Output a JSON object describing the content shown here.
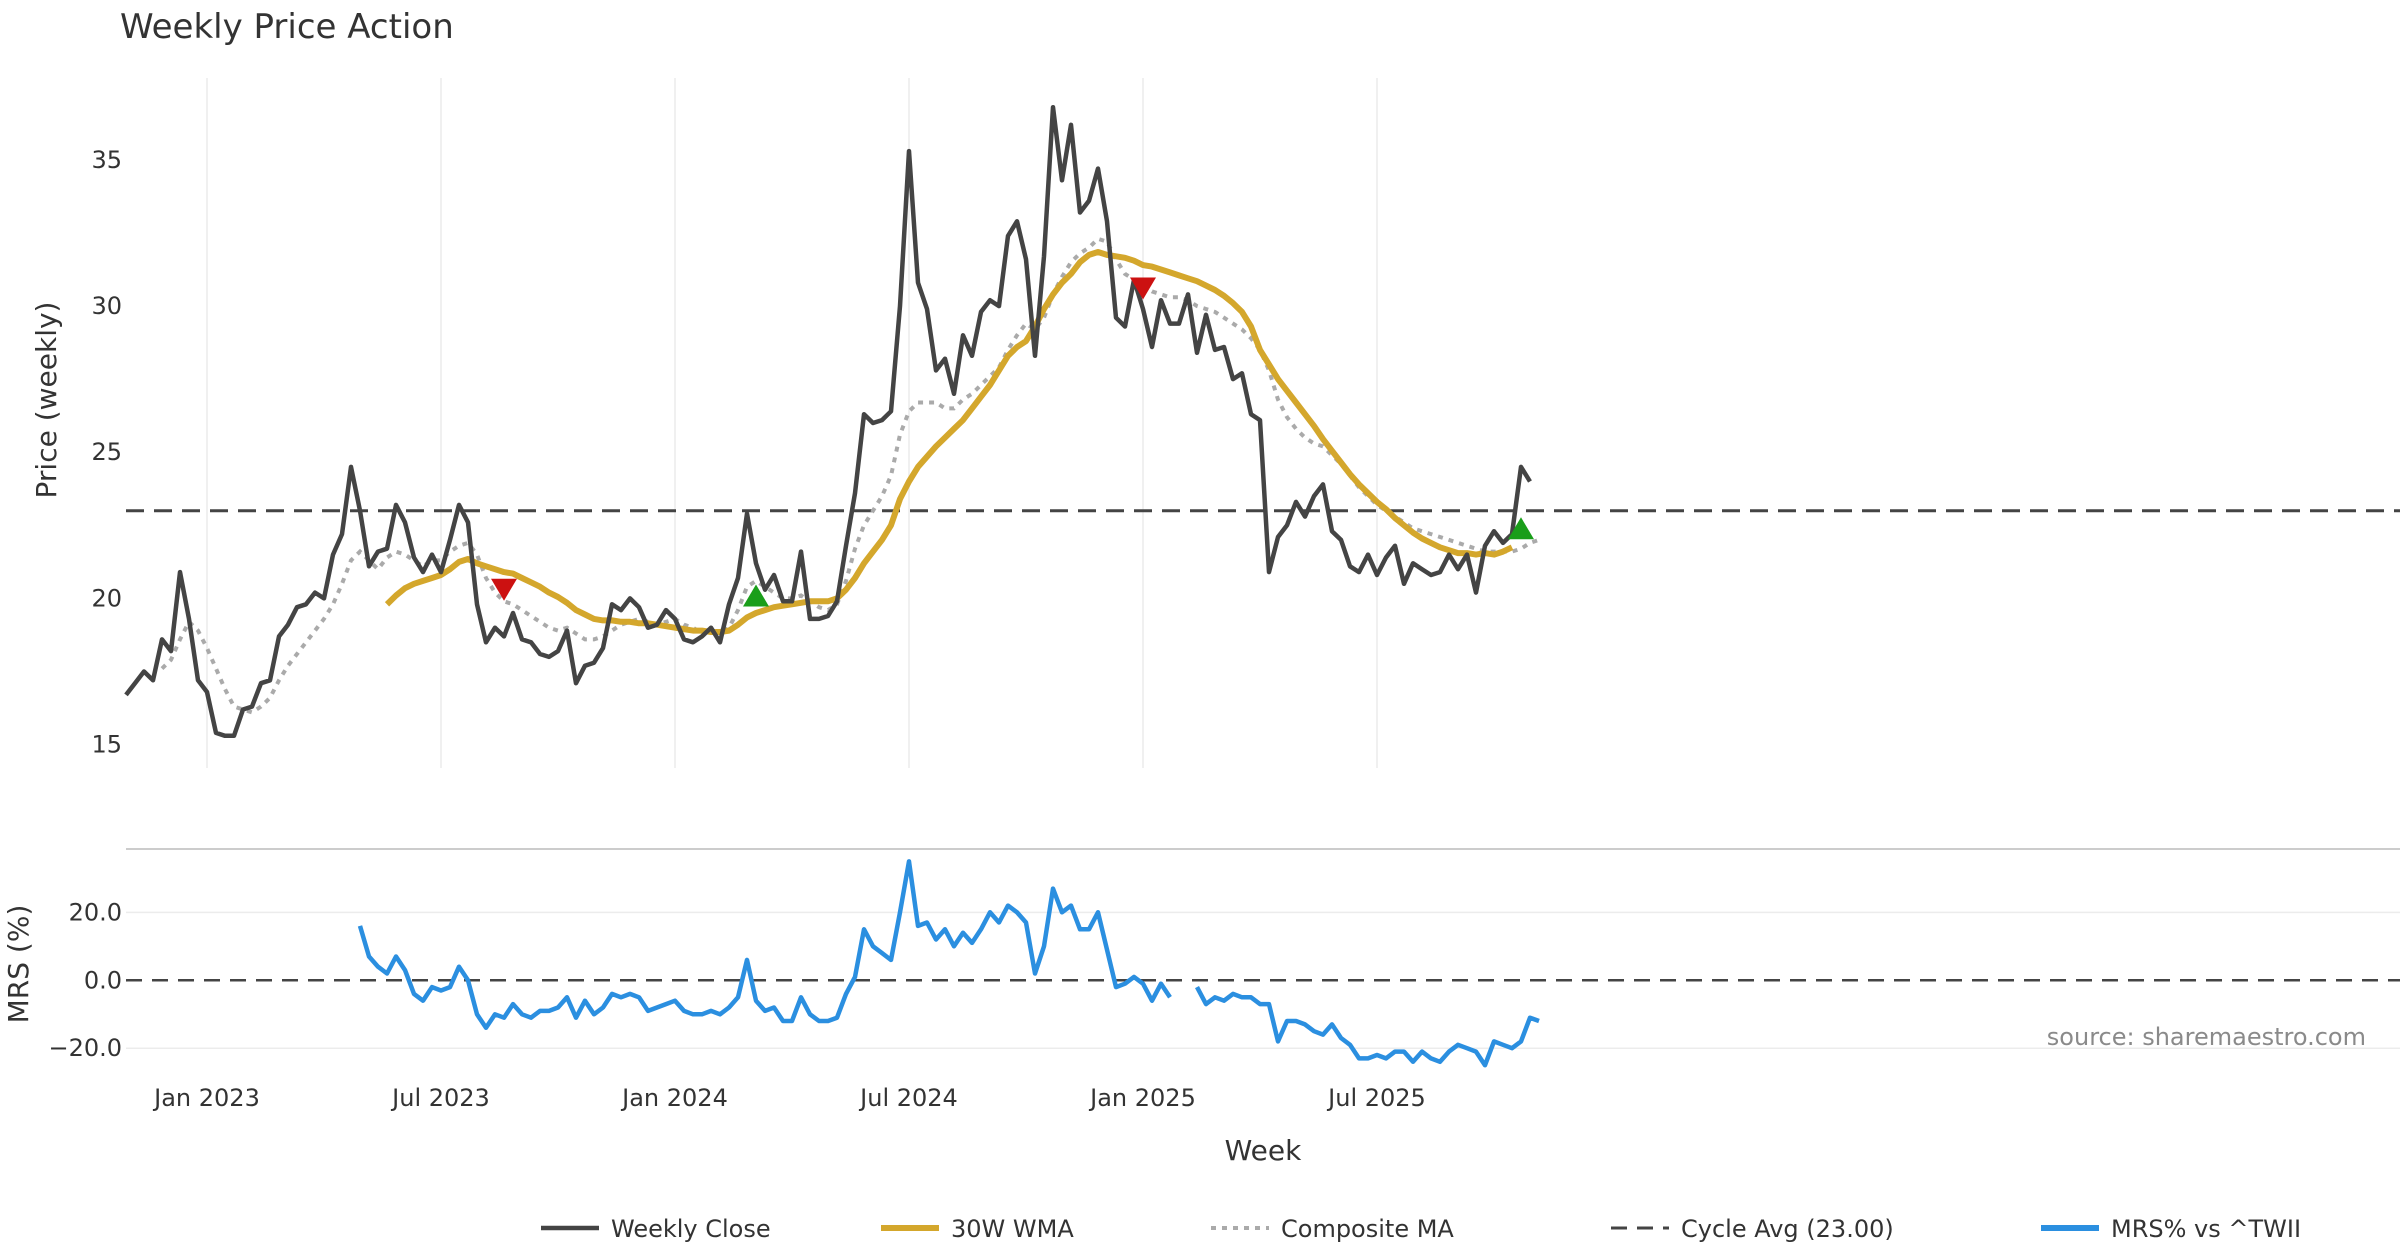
{
  "chart_data": {
    "type": "line",
    "title": "Weekly Price Action",
    "source": "source: sharemaestro.com",
    "xlabel": "Week",
    "x_ticks": [
      "Jan 2023",
      "Jul 2023",
      "Jan 2024",
      "Jul 2024",
      "Jan 2025",
      "Jul 2025"
    ],
    "x_tick_weeks": [
      9,
      35,
      61,
      87,
      113,
      139
    ],
    "weeks_total": 158,
    "price_panel": {
      "ylabel": "Price (weekly)",
      "ylim": [
        14.2,
        37.8
      ],
      "y_ticks": [
        15,
        20,
        25,
        30,
        35
      ],
      "cycle_avg": 23.0,
      "series": {
        "close": [
          16.7,
          17.1,
          17.5,
          17.2,
          18.6,
          18.2,
          20.9,
          19.3,
          17.2,
          16.8,
          15.4,
          15.3,
          15.3,
          16.2,
          16.3,
          17.1,
          17.2,
          18.7,
          19.1,
          19.7,
          19.8,
          20.2,
          20.0,
          21.5,
          22.2,
          24.5,
          23.0,
          21.1,
          21.6,
          21.7,
          23.2,
          22.6,
          21.4,
          20.9,
          21.5,
          20.9,
          22.0,
          23.2,
          22.6,
          19.8,
          18.5,
          19.0,
          18.7,
          19.5,
          18.6,
          18.5,
          18.1,
          18.0,
          18.2,
          18.9,
          17.1,
          17.7,
          17.8,
          18.3,
          19.8,
          19.6,
          20.0,
          19.7,
          19.0,
          19.1,
          19.6,
          19.3,
          18.6,
          18.5,
          18.7,
          19.0,
          18.5,
          19.8,
          20.7,
          22.9,
          21.2,
          20.3,
          20.8,
          19.9,
          19.9,
          21.6,
          19.3,
          19.3,
          19.4,
          19.9,
          21.8,
          23.6,
          26.3,
          26.0,
          26.1,
          26.4,
          30.0,
          35.3,
          30.8,
          29.9,
          27.8,
          28.2,
          27.0,
          29.0,
          28.3,
          29.8,
          30.2,
          30.0,
          32.4,
          32.9,
          31.6,
          28.3,
          31.7,
          36.8,
          34.3,
          36.2,
          33.2,
          33.6,
          34.7,
          32.9,
          29.6,
          29.3,
          30.9,
          29.9,
          28.6,
          30.2,
          29.4,
          29.4,
          30.4,
          28.4,
          29.7,
          28.5,
          28.6,
          27.5,
          27.7,
          26.3,
          26.1,
          20.9,
          22.1,
          22.5,
          23.3,
          22.8,
          23.5,
          23.9,
          22.3,
          22.0,
          21.1,
          20.9,
          21.5,
          20.8,
          21.4,
          21.8,
          20.5,
          21.2,
          21.0,
          20.8,
          20.9,
          21.5,
          21.0,
          21.5,
          20.2,
          21.8,
          22.3,
          21.9,
          22.2,
          24.5,
          24.0
        ],
        "wma": [
          null,
          null,
          null,
          null,
          null,
          null,
          null,
          null,
          null,
          null,
          null,
          null,
          null,
          null,
          null,
          null,
          null,
          null,
          null,
          null,
          null,
          null,
          null,
          null,
          null,
          null,
          null,
          null,
          null,
          19.8,
          20.1,
          20.35,
          20.5,
          20.6,
          20.7,
          20.8,
          21.0,
          21.25,
          21.35,
          21.2,
          21.1,
          21.0,
          20.9,
          20.85,
          20.7,
          20.55,
          20.4,
          20.2,
          20.05,
          19.85,
          19.6,
          19.45,
          19.3,
          19.25,
          19.25,
          19.2,
          19.2,
          19.15,
          19.15,
          19.1,
          19.05,
          19.0,
          18.95,
          18.9,
          18.9,
          18.85,
          18.85,
          18.9,
          19.1,
          19.35,
          19.5,
          19.6,
          19.7,
          19.75,
          19.8,
          19.85,
          19.9,
          19.9,
          19.9,
          20.0,
          20.3,
          20.7,
          21.2,
          21.6,
          22.0,
          22.5,
          23.4,
          24.0,
          24.5,
          24.85,
          25.2,
          25.5,
          25.8,
          26.1,
          26.5,
          26.9,
          27.3,
          27.8,
          28.3,
          28.6,
          28.8,
          29.3,
          29.9,
          30.4,
          30.8,
          31.1,
          31.5,
          31.75,
          31.85,
          31.75,
          31.7,
          31.65,
          31.55,
          31.4,
          31.35,
          31.25,
          31.15,
          31.05,
          30.95,
          30.85,
          30.7,
          30.55,
          30.35,
          30.1,
          29.8,
          29.3,
          28.5,
          28.0,
          27.5,
          27.1,
          26.7,
          26.3,
          25.9,
          25.45,
          25.05,
          24.65,
          24.25,
          23.9,
          23.6,
          23.3,
          23.05,
          22.75,
          22.5,
          22.25,
          22.05,
          21.9,
          21.75,
          21.65,
          21.55,
          21.55,
          21.5,
          21.55,
          21.5,
          21.6,
          21.75
        ]
      },
      "composite_ma": [
        null,
        null,
        null,
        null,
        17.6,
        17.9,
        18.6,
        19.2,
        18.9,
        18.3,
        17.6,
        16.9,
        16.3,
        16.2,
        16.1,
        16.3,
        16.6,
        17.2,
        17.7,
        18.1,
        18.5,
        18.9,
        19.3,
        19.8,
        20.5,
        21.3,
        21.6,
        21.3,
        21.0,
        21.4,
        21.6,
        21.5,
        21.3,
        21.1,
        21.3,
        21.3,
        21.6,
        21.8,
        21.9,
        21.5,
        20.7,
        20.2,
        19.9,
        19.8,
        19.6,
        19.4,
        19.2,
        19.0,
        18.9,
        19.0,
        18.8,
        18.6,
        18.6,
        18.7,
        18.9,
        19.1,
        19.2,
        19.3,
        19.2,
        19.1,
        19.2,
        19.3,
        19.1,
        19.0,
        18.8,
        18.9,
        18.8,
        19.0,
        19.6,
        20.4,
        20.6,
        20.4,
        20.2,
        20.0,
        20.0,
        20.1,
        19.9,
        19.7,
        19.6,
        19.8,
        20.6,
        21.7,
        22.5,
        23.0,
        23.5,
        24.2,
        25.6,
        26.4,
        26.7,
        26.7,
        26.7,
        26.5,
        26.5,
        26.8,
        27.0,
        27.3,
        27.6,
        27.9,
        28.5,
        29.0,
        29.4,
        29.2,
        29.6,
        30.4,
        31.0,
        31.5,
        31.8,
        32.0,
        32.3,
        32.2,
        31.6,
        31.1,
        30.9,
        30.7,
        30.5,
        30.4,
        30.3,
        30.3,
        30.2,
        30.0,
        29.9,
        29.8,
        29.6,
        29.4,
        29.2,
        28.9,
        28.5,
        27.8,
        26.8,
        26.2,
        25.8,
        25.5,
        25.3,
        25.2,
        24.9,
        24.6,
        24.2,
        23.8,
        23.5,
        23.2,
        23.0,
        22.8,
        22.6,
        22.4,
        22.3,
        22.2,
        22.1,
        22.0,
        21.9,
        21.8,
        21.7,
        21.6,
        21.6,
        21.6,
        21.6,
        21.7,
        21.9,
        22.0
      ],
      "signals": [
        {
          "type": "sell",
          "week": 42,
          "price": 20.3
        },
        {
          "type": "buy",
          "week": 70,
          "price": 20.1
        },
        {
          "type": "sell",
          "week": 113,
          "price": 30.6
        },
        {
          "type": "buy",
          "week": 155,
          "price": 22.4
        }
      ],
      "colors": {
        "close": "#444444",
        "wma": "#d4a72c",
        "composite": "#aaaaaa",
        "cycle": "#444444",
        "buy": "#1a9e1a",
        "sell": "#cc1111"
      }
    },
    "mrs_panel": {
      "ylabel": "MRS (%)",
      "ylim": [
        -27,
        36
      ],
      "y_ticks": [
        "20.0",
        "0.0",
        "−20.0"
      ],
      "y_tick_values": [
        20,
        0,
        -20
      ],
      "zero_line": 0,
      "color": "#2b8fe0",
      "values": [
        null,
        null,
        null,
        null,
        null,
        null,
        null,
        null,
        null,
        null,
        null,
        null,
        null,
        null,
        null,
        null,
        null,
        null,
        null,
        null,
        null,
        null,
        null,
        null,
        null,
        null,
        16.0,
        7.0,
        4.0,
        2.0,
        7.0,
        3.0,
        -4.0,
        -6.0,
        -2.0,
        -3.0,
        -2.0,
        4.0,
        0.0,
        -10.0,
        -14.0,
        -10.0,
        -11.0,
        -7.0,
        -10.0,
        -11.0,
        -9.0,
        -9.0,
        -8.0,
        -5.0,
        -11.0,
        -6.0,
        -10.0,
        -8.0,
        -4.0,
        -5.0,
        -4.0,
        -5.0,
        -9.0,
        -8.0,
        -7.0,
        -6.0,
        -9.0,
        -10.0,
        -10.0,
        -9.0,
        -10.0,
        -8.0,
        -5.0,
        6.0,
        -6.0,
        -9.0,
        -8.0,
        -12.0,
        -12.0,
        -5.0,
        -10.0,
        -12.0,
        -12.0,
        -11.0,
        -4.0,
        1.0,
        15.0,
        10.0,
        8.0,
        6.0,
        20.0,
        35.0,
        16.0,
        17.0,
        12.0,
        15.0,
        10.0,
        14.0,
        11.0,
        15.0,
        20.0,
        17.0,
        22.0,
        20.0,
        17.0,
        2.0,
        10.0,
        27.0,
        20.0,
        22.0,
        15.0,
        15.0,
        20.0,
        9.0,
        -2.0,
        -1.0,
        1.0,
        -1.0,
        -6.0,
        -1.0,
        -5.0,
        null,
        null,
        -2.0,
        -7.0,
        -5.0,
        -6.0,
        -4.0,
        -5.0,
        -5.0,
        -7.0,
        -7.0,
        -18.0,
        -12.0,
        -12.0,
        -13.0,
        -15.0,
        -16.0,
        -13.0,
        -17.0,
        -19.0,
        -23.0,
        -23.0,
        -22.0,
        -23.0,
        -21.0,
        -21.0,
        -24.0,
        -21.0,
        -23.0,
        -24.0,
        -21.0,
        -19.0,
        -20.0,
        -21.0,
        -25.0,
        -18.0,
        -19.0,
        -20.0,
        -18.0,
        -11.0,
        -12.0
      ]
    },
    "legend": [
      {
        "label": "Weekly Close",
        "style": "solid",
        "color": "#444444"
      },
      {
        "label": "30W WMA",
        "style": "solid-thick",
        "color": "#d4a72c"
      },
      {
        "label": "Composite MA",
        "style": "dotted",
        "color": "#aaaaaa"
      },
      {
        "label": "Cycle Avg (23.00)",
        "style": "dashed",
        "color": "#444444"
      },
      {
        "label": "MRS% vs ^TWII",
        "style": "solid-thick",
        "color": "#2b8fe0"
      }
    ],
    "legend_position": "bottom-center"
  }
}
